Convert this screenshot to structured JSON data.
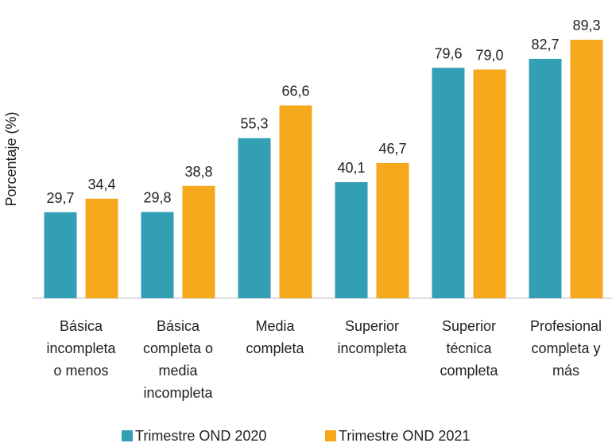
{
  "chart_data": {
    "type": "bar",
    "y_label": "Porcentaje (%)",
    "categories": [
      "Básica\nincompleta\no menos",
      "Básica\ncompleta o\nmedia\nincompleta",
      "Media\ncompleta",
      "Superior\nincompleta",
      "Superior\ntécnica\ncompleta",
      "Profesional\ncompleta y\nmás"
    ],
    "series": [
      {
        "name": "Trimestre OND 2020",
        "color": "#339fb5",
        "values": [
          29.7,
          29.8,
          55.3,
          40.1,
          79.6,
          82.7
        ],
        "value_labels": [
          "29,7",
          "29,8",
          "55,3",
          "40,1",
          "79,6",
          "82,7"
        ]
      },
      {
        "name": "Trimestre OND 2021",
        "color": "#f5a81c",
        "values": [
          34.4,
          38.8,
          66.6,
          46.7,
          79.0,
          89.3
        ],
        "value_labels": [
          "34,4",
          "38,8",
          "66,6",
          "46,7",
          "79,0",
          "89,3"
        ]
      }
    ],
    "ylim": [
      0,
      100
    ],
    "legend": "bottom"
  }
}
